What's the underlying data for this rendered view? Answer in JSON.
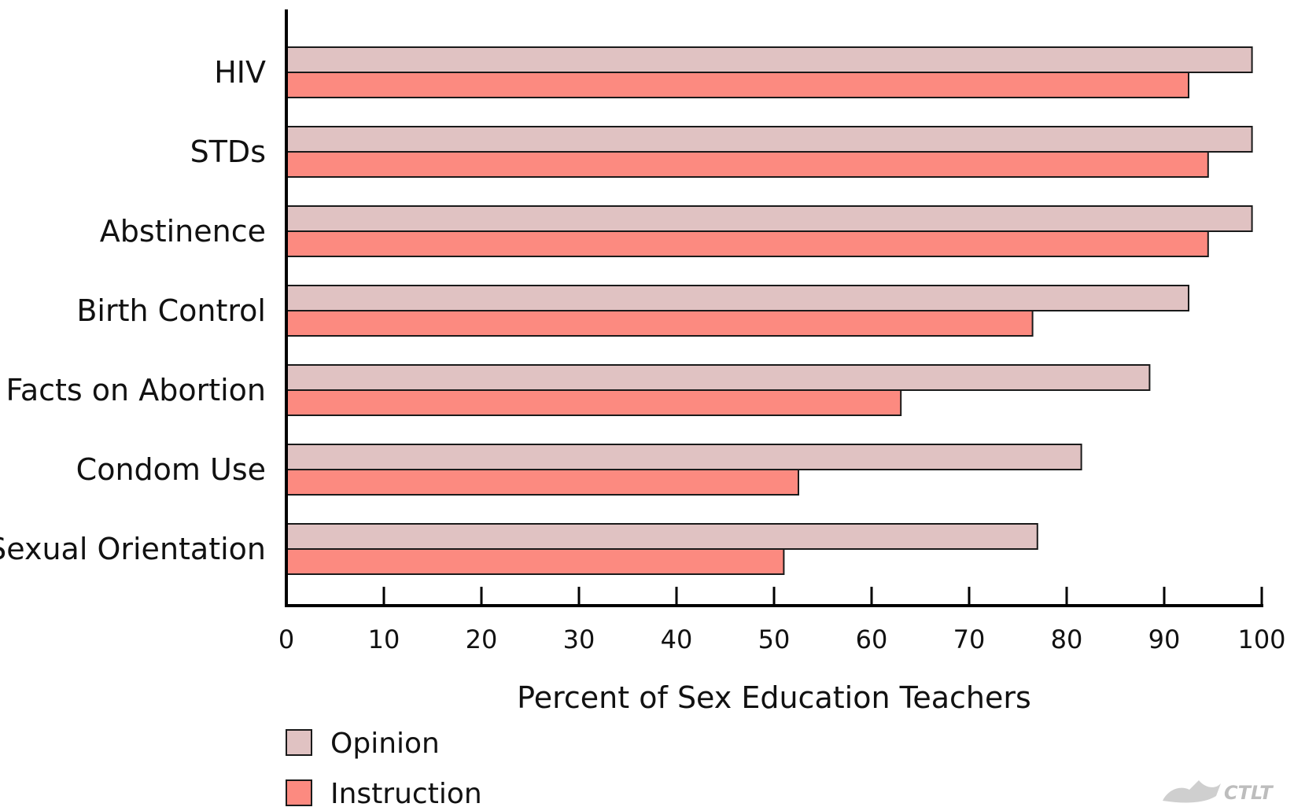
{
  "chart_data": {
    "type": "bar",
    "orientation": "horizontal",
    "categories": [
      "HIV",
      "STDs",
      "Abstinence",
      "Birth Control",
      "Facts on Abortion",
      "Condom Use",
      "Sexual Orientation"
    ],
    "series": [
      {
        "name": "Opinion",
        "color": "#e0c2c2",
        "values": [
          99,
          99,
          99,
          92.5,
          88.5,
          81.5,
          77
        ]
      },
      {
        "name": "Instruction",
        "color": "#fc8a80",
        "values": [
          92.5,
          94.5,
          94.5,
          76.5,
          63,
          52.5,
          51
        ]
      }
    ],
    "xlabel": "Percent of Sex Education Teachers",
    "ylabel": "",
    "xlim": [
      0,
      100
    ],
    "xticks": [
      0,
      10,
      20,
      30,
      40,
      50,
      60,
      70,
      80,
      90,
      100
    ],
    "grid": false,
    "legend_position": "bottom-left"
  },
  "watermark": {
    "text": "CTLT"
  }
}
